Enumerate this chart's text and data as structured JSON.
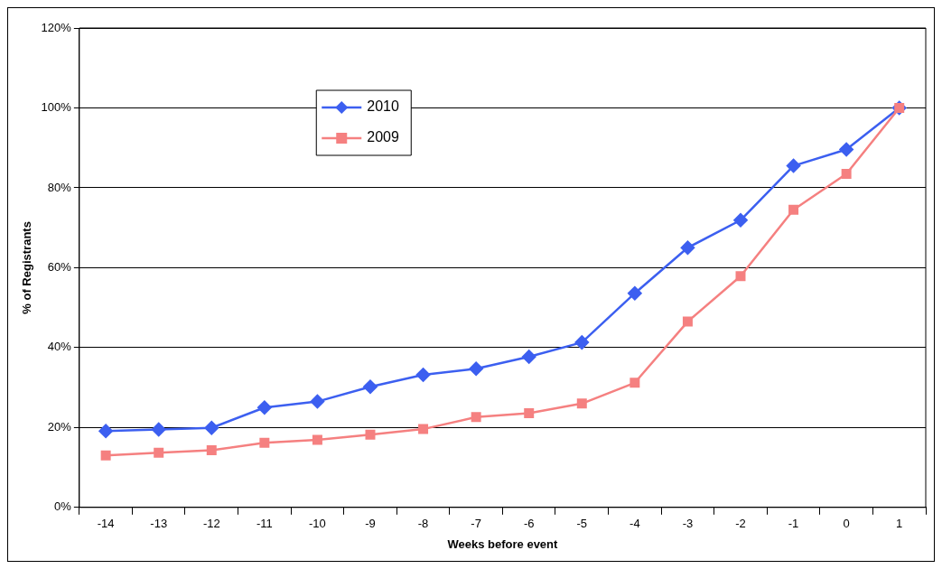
{
  "chart_data": {
    "type": "line",
    "xlabel": "Weeks before event",
    "ylabel": "% of Registrants",
    "categories": [
      "-14",
      "-13",
      "-12",
      "-11",
      "-10",
      "-9",
      "-8",
      "-7",
      "-6",
      "-5",
      "-4",
      "-3",
      "-2",
      "-1",
      "0",
      "1"
    ],
    "series": [
      {
        "name": "2010",
        "color": "#3c5ff0",
        "marker": "diamond",
        "values": [
          19.1,
          19.5,
          19.9,
          25,
          26.5,
          30.2,
          33.2,
          34.7,
          37.7,
          41.3,
          53.6,
          65,
          71.9,
          85.5,
          89.6,
          100
        ]
      },
      {
        "name": "2009",
        "color": "#f58080",
        "marker": "square",
        "values": [
          13,
          13.7,
          14.3,
          16.2,
          16.9,
          18.2,
          19.6,
          22.6,
          23.6,
          26,
          31.2,
          46.5,
          57.9,
          74.5,
          83.5,
          100
        ]
      }
    ],
    "ylim": [
      0,
      120
    ],
    "yticks": [
      {
        "value": 0,
        "label": "0%"
      },
      {
        "value": 20,
        "label": "20%"
      },
      {
        "value": 40,
        "label": "40%"
      },
      {
        "value": 60,
        "label": "60%"
      },
      {
        "value": 80,
        "label": "80%"
      },
      {
        "value": 100,
        "label": "100%"
      },
      {
        "value": 120,
        "label": "120%"
      }
    ],
    "grid": "y",
    "legend": "top left",
    "line_style": "solid"
  }
}
